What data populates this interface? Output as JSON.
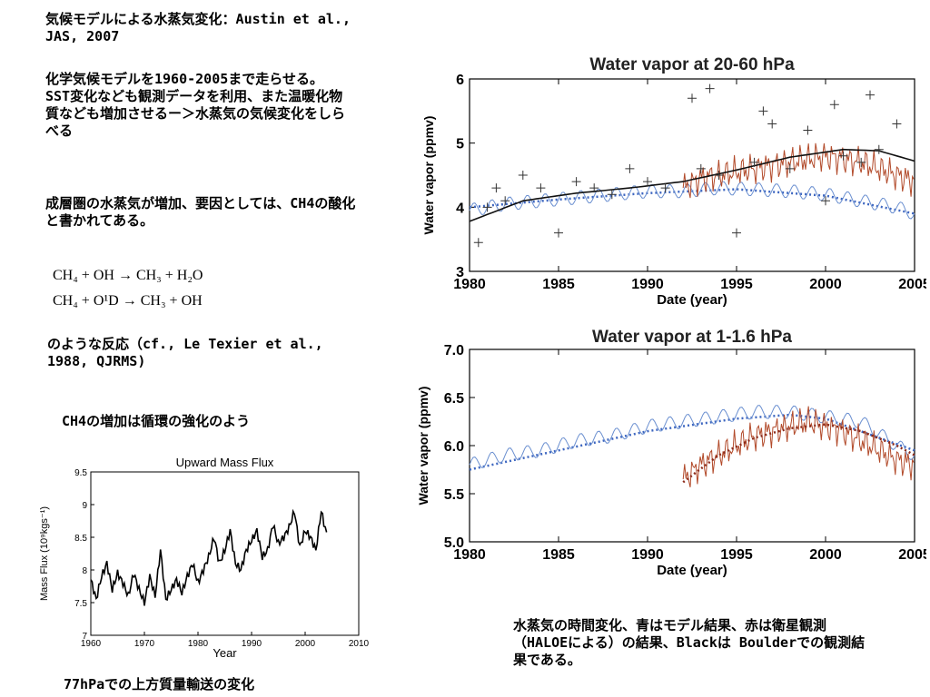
{
  "text": {
    "heading": "気候モデルによる水蒸気変化：Austin et al., JAS, 2007",
    "desc": "化学気候モデルを1960-2005まで走らせる。SST変化なども観測データを利用、また温暖化物質なども増加させるー＞水蒸気の気候変化をしらべる",
    "increase": "成層圏の水蒸気が増加、要因としては、CH4の酸化と書かれてある。",
    "eq1": "CH₄ + OH → CH₃ + H₂O",
    "eq2": "CH₄ + O¹D → CH₃ + OH",
    "reaction": "のような反応（cf., Le Texier et al., 1988, QJRMS)",
    "ch4": "CH4の増加は循環の強化のよう",
    "flux_caption": "77hPaでの上方質量輸送の変化",
    "wv_caption": "水蒸気の時間変化、青はモデル結果、赤は衛星観測（HALOEによる）の結果、Blackは Boulderでの観測結果である。"
  },
  "chart_data": [
    {
      "type": "line",
      "title": "Water vapor at 20-60 hPa",
      "xlabel": "Date (year)",
      "ylabel": "Water vapor (ppmv)",
      "xlim": [
        1980,
        2005
      ],
      "ylim": [
        3,
        6
      ],
      "xticks": [
        "1980",
        "1985",
        "1990",
        "1995",
        "2000",
        "2005"
      ],
      "yticks": [
        "3",
        "4",
        "5",
        "6"
      ],
      "colors": {
        "model": "#6a8fd0",
        "haloe": "#b24a2a",
        "boulder": "#000000"
      },
      "series": [
        {
          "id": "model-mean",
          "style": "dotted",
          "x": [
            1980,
            1985,
            1990,
            1995,
            2000,
            2005
          ],
          "y": [
            4.0,
            4.12,
            4.22,
            4.28,
            4.18,
            3.9
          ]
        },
        {
          "id": "model",
          "style": "thin",
          "x": [
            1980,
            1982,
            1984,
            1986,
            1988,
            1990,
            1992,
            1994,
            1996,
            1998,
            2000,
            2002,
            2004,
            2005
          ],
          "y": [
            3.95,
            4.05,
            4.1,
            4.15,
            4.2,
            4.25,
            4.25,
            4.3,
            4.28,
            4.25,
            4.2,
            4.1,
            4.0,
            3.9
          ]
        },
        {
          "id": "haloe",
          "style": "red",
          "x": [
            1992,
            1993,
            1994,
            1995,
            1996,
            1997,
            1998,
            1999,
            2000,
            2001,
            2002,
            2003,
            2004,
            2005
          ],
          "y": [
            4.3,
            4.45,
            4.5,
            4.55,
            4.6,
            4.65,
            4.7,
            4.75,
            4.8,
            4.75,
            4.7,
            4.6,
            4.5,
            4.4
          ]
        },
        {
          "id": "boulder-fit",
          "style": "black",
          "x": [
            1980,
            1983,
            1986,
            1989,
            1992,
            1995,
            1998,
            2001,
            2003,
            2005
          ],
          "y": [
            3.78,
            4.1,
            4.22,
            4.3,
            4.4,
            4.58,
            4.78,
            4.9,
            4.88,
            4.72
          ]
        },
        {
          "id": "boulder",
          "style": "plus",
          "x": [
            1980.5,
            1981,
            1981.5,
            1982,
            1983,
            1984,
            1985,
            1986,
            1987,
            1988,
            1989,
            1990,
            1991,
            1992.5,
            1993,
            1993.5,
            1994,
            1995,
            1996,
            1996.5,
            1997,
            1998,
            1999,
            2000,
            2000.5,
            2001,
            2002,
            2002.5,
            2003,
            2004
          ],
          "y": [
            3.45,
            4.0,
            4.3,
            4.1,
            4.5,
            4.3,
            3.6,
            4.4,
            4.3,
            4.2,
            4.6,
            4.4,
            4.3,
            5.7,
            4.6,
            5.85,
            4.5,
            3.6,
            4.7,
            5.5,
            5.3,
            4.6,
            5.2,
            4.1,
            5.6,
            4.8,
            4.7,
            5.75,
            4.9,
            5.3
          ]
        }
      ]
    },
    {
      "type": "line",
      "title": "Water vapor at 1-1.6 hPa",
      "xlabel": "Date (year)",
      "ylabel": "Water vapor (ppmv)",
      "xlim": [
        1980,
        2005
      ],
      "ylim": [
        5.0,
        7.0
      ],
      "xticks": [
        "1980",
        "1985",
        "1990",
        "1995",
        "2000",
        "2005"
      ],
      "yticks": [
        "5.0",
        "5.5",
        "6.0",
        "6.5",
        "7.0"
      ],
      "colors": {
        "model": "#6a8fd0",
        "haloe": "#b24a2a",
        "haloe_fit": "#8b2a1a"
      },
      "series": [
        {
          "id": "model-mean",
          "style": "dotted",
          "x": [
            1980,
            1985,
            1990,
            1995,
            1998,
            2000,
            2005
          ],
          "y": [
            5.75,
            5.95,
            6.15,
            6.28,
            6.32,
            6.28,
            5.95
          ]
        },
        {
          "id": "model",
          "style": "thin",
          "x": [
            1980,
            1982,
            1984,
            1986,
            1988,
            1990,
            1992,
            1994,
            1996,
            1998,
            2000,
            2002,
            2004,
            2005
          ],
          "y": [
            5.8,
            5.9,
            5.95,
            6.05,
            6.1,
            6.2,
            6.25,
            6.3,
            6.35,
            6.35,
            6.3,
            6.25,
            6.0,
            5.9
          ]
        },
        {
          "id": "haloe",
          "style": "red",
          "x": [
            1992,
            1993,
            1994,
            1995,
            1996,
            1997,
            1998,
            1999,
            2000,
            2001,
            2002,
            2003,
            2004,
            2005
          ],
          "y": [
            5.65,
            5.8,
            5.9,
            6.0,
            6.1,
            6.15,
            6.2,
            6.25,
            6.2,
            6.15,
            6.05,
            5.95,
            5.85,
            5.8
          ]
        },
        {
          "id": "haloe-fit",
          "style": "dottedred",
          "x": [
            1992,
            1994,
            1996,
            1998,
            2000,
            2002,
            2004,
            2005
          ],
          "y": [
            5.62,
            5.9,
            6.08,
            6.18,
            6.22,
            6.15,
            6.0,
            5.9
          ]
        }
      ]
    },
    {
      "type": "line",
      "title": "Upward Mass Flux",
      "xlabel": "Year",
      "ylabel": "Mass Flux (10⁹kgs⁻¹)",
      "xlim": [
        1960,
        2010
      ],
      "ylim": [
        7,
        9.5
      ],
      "xticks": [
        "1960",
        "1970",
        "1980",
        "1990",
        "2000",
        "2010"
      ],
      "yticks": [
        "7",
        "7.5",
        "8",
        "8.5",
        "9",
        "9.5"
      ],
      "series": [
        {
          "id": "flux",
          "x": [
            1960,
            1961,
            1962,
            1963,
            1964,
            1965,
            1966,
            1967,
            1968,
            1969,
            1970,
            1971,
            1972,
            1973,
            1974,
            1975,
            1976,
            1977,
            1978,
            1979,
            1980,
            1981,
            1982,
            1983,
            1984,
            1985,
            1986,
            1987,
            1988,
            1989,
            1990,
            1991,
            1992,
            1993,
            1994,
            1995,
            1996,
            1997,
            1998,
            1999,
            2000,
            2001,
            2002,
            2003,
            2004
          ],
          "y": [
            7.85,
            7.55,
            7.9,
            8.1,
            7.7,
            7.95,
            7.8,
            7.6,
            7.95,
            7.7,
            7.5,
            7.9,
            7.6,
            8.3,
            7.55,
            7.7,
            7.85,
            7.65,
            7.9,
            8.1,
            7.8,
            8.0,
            8.2,
            8.5,
            8.1,
            8.3,
            8.6,
            8.1,
            8.0,
            8.3,
            8.45,
            8.6,
            8.2,
            8.3,
            8.7,
            8.4,
            8.5,
            8.65,
            8.9,
            8.35,
            8.6,
            8.5,
            8.3,
            8.9,
            8.55
          ]
        }
      ]
    }
  ]
}
